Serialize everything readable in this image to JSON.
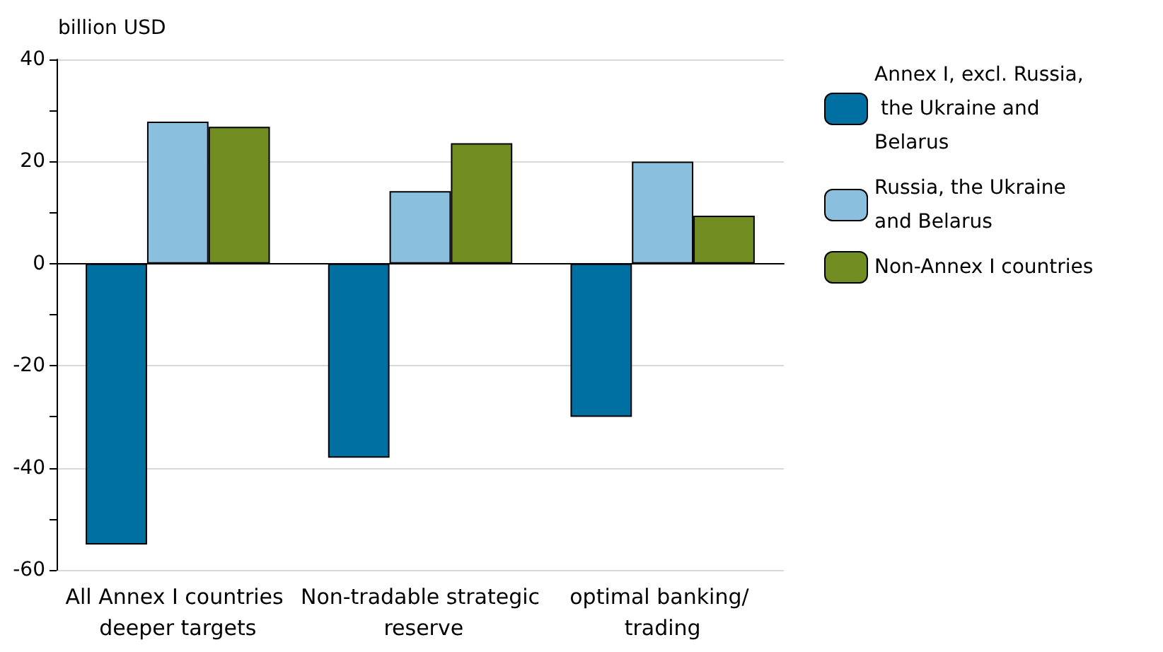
{
  "chart_data": {
    "type": "bar",
    "ylabel": "billion USD",
    "categories": [
      "All Annex I countries deeper targets",
      "Non-tradable strategic reserve",
      "optimal banking/ trading"
    ],
    "series": [
      {
        "name": "Annex I, excl. Russia, the Ukraine and Belarus",
        "color": "#0070a3",
        "values": [
          -55,
          -38,
          -30
        ]
      },
      {
        "name": "Russia, the Ukraine and Belarus",
        "color": "#8ac0de",
        "values": [
          27.8,
          14.2,
          20
        ]
      },
      {
        "name": "Non-Annex I countries",
        "color": "#718c21",
        "values": [
          26.8,
          23.6,
          9.4
        ]
      }
    ],
    "ylim": [
      -60,
      40
    ],
    "yticks": [
      -60,
      {
        "value": -50,
        "label": null
      },
      -40,
      {
        "value": -30,
        "label": null
      },
      -20,
      {
        "value": -10,
        "label": null
      },
      0,
      {
        "value": 10,
        "label": null
      },
      20,
      {
        "value": 30,
        "label": null
      },
      40
    ],
    "grid": "y",
    "legend": "top right"
  }
}
